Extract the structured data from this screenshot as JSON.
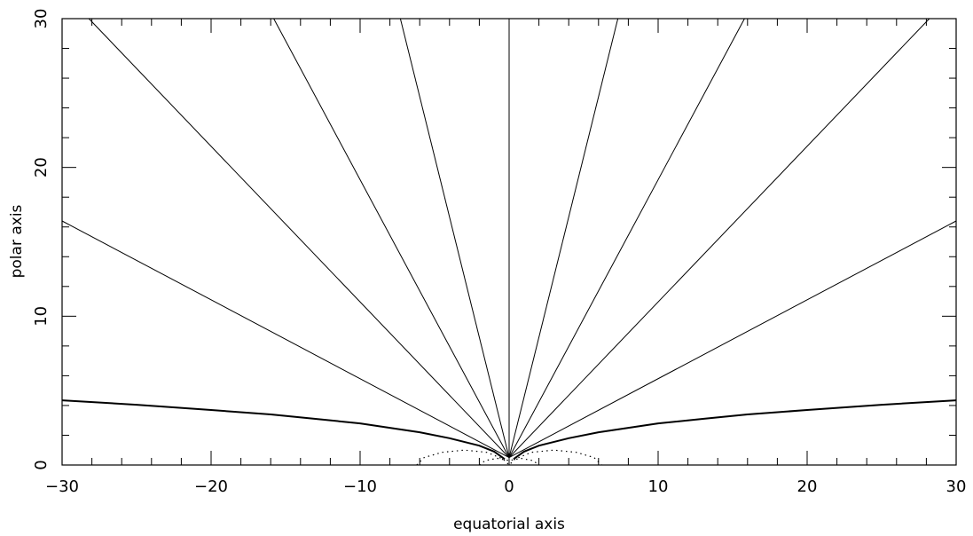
{
  "chart_data": {
    "type": "line",
    "title": "",
    "xlabel": "equatorial axis",
    "ylabel": "polar axis",
    "xlim": [
      -30,
      30
    ],
    "ylim": [
      0,
      30
    ],
    "x_ticks": [
      -30,
      -20,
      -10,
      0,
      10,
      20,
      30
    ],
    "y_ticks": [
      0,
      10,
      20,
      30
    ],
    "x_tick_labels": [
      "−30",
      "−20",
      "−10",
      "0",
      "10",
      "20",
      "30"
    ],
    "y_tick_labels": [
      "0",
      "10",
      "20",
      "30"
    ],
    "grid": false,
    "legend": "none",
    "series": [
      {
        "style": "thin",
        "points": [
          [
            0,
            0.5
          ],
          [
            28.2,
            30
          ]
        ]
      },
      {
        "style": "thin",
        "points": [
          [
            0,
            0.5
          ],
          [
            15.8,
            30
          ]
        ]
      },
      {
        "style": "thin",
        "points": [
          [
            0,
            0.5
          ],
          [
            7.3,
            30
          ]
        ]
      },
      {
        "style": "thin",
        "points": [
          [
            0,
            0.5
          ],
          [
            -7.3,
            30
          ]
        ]
      },
      {
        "style": "thin",
        "points": [
          [
            0,
            0.5
          ],
          [
            -15.8,
            30
          ]
        ]
      },
      {
        "style": "thin",
        "points": [
          [
            0,
            0.5
          ],
          [
            -28.2,
            30
          ]
        ]
      },
      {
        "style": "thin",
        "points": [
          [
            0,
            0.5
          ],
          [
            30,
            16.4
          ]
        ]
      },
      {
        "style": "thin",
        "points": [
          [
            0,
            0.5
          ],
          [
            -30,
            16.4
          ]
        ]
      },
      {
        "style": "thin",
        "points": [
          [
            0,
            0
          ],
          [
            0,
            30
          ]
        ]
      },
      {
        "style": "thick",
        "points": [
          [
            0.3,
            0.4
          ],
          [
            1,
            0.9
          ],
          [
            2,
            1.3
          ],
          [
            4,
            1.8
          ],
          [
            6,
            2.2
          ],
          [
            8,
            2.5
          ],
          [
            10,
            2.8
          ],
          [
            13,
            3.1
          ],
          [
            16,
            3.4
          ],
          [
            20,
            3.7
          ],
          [
            25,
            4.05
          ],
          [
            30,
            4.35
          ]
        ]
      },
      {
        "style": "thick",
        "points": [
          [
            -0.3,
            0.4
          ],
          [
            -1,
            0.9
          ],
          [
            -2,
            1.3
          ],
          [
            -4,
            1.8
          ],
          [
            -6,
            2.2
          ],
          [
            -8,
            2.5
          ],
          [
            -10,
            2.8
          ],
          [
            -13,
            3.1
          ],
          [
            -16,
            3.4
          ],
          [
            -20,
            3.7
          ],
          [
            -25,
            4.05
          ],
          [
            -30,
            4.35
          ]
        ]
      },
      {
        "style": "dotted",
        "points": [
          [
            -6.2,
            0
          ],
          [
            -5.7,
            0.5
          ],
          [
            -4.5,
            0.85
          ],
          [
            -3,
            1.0
          ],
          [
            -1.5,
            0.85
          ],
          [
            -0.4,
            0.4
          ],
          [
            0,
            0
          ],
          [
            0.4,
            0.4
          ],
          [
            1.5,
            0.85
          ],
          [
            3,
            1.0
          ],
          [
            4.5,
            0.85
          ],
          [
            5.7,
            0.5
          ],
          [
            6.2,
            0
          ]
        ]
      },
      {
        "style": "dotted",
        "points": [
          [
            -2,
            0
          ],
          [
            -1.6,
            0.3
          ],
          [
            -0.8,
            0.45
          ],
          [
            0,
            0.3
          ],
          [
            0.8,
            0.45
          ],
          [
            1.6,
            0.3
          ],
          [
            2,
            0
          ]
        ]
      }
    ]
  }
}
